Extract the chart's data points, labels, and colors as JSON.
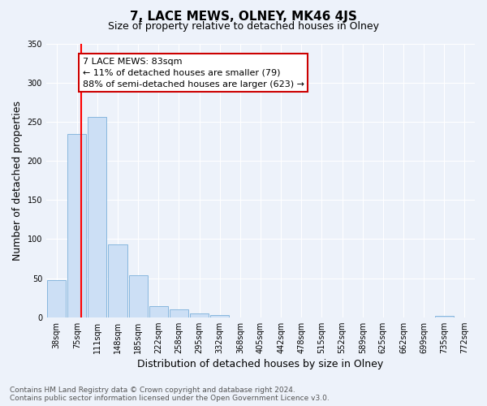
{
  "title": "7, LACE MEWS, OLNEY, MK46 4JS",
  "subtitle": "Size of property relative to detached houses in Olney",
  "xlabel": "Distribution of detached houses by size in Olney",
  "ylabel": "Number of detached properties",
  "bar_labels": [
    "38sqm",
    "75sqm",
    "111sqm",
    "148sqm",
    "185sqm",
    "222sqm",
    "258sqm",
    "295sqm",
    "332sqm",
    "368sqm",
    "405sqm",
    "442sqm",
    "478sqm",
    "515sqm",
    "552sqm",
    "589sqm",
    "625sqm",
    "662sqm",
    "699sqm",
    "735sqm",
    "772sqm"
  ],
  "bar_values": [
    48,
    235,
    256,
    93,
    54,
    14,
    10,
    5,
    3,
    0,
    0,
    0,
    0,
    0,
    0,
    0,
    0,
    0,
    0,
    2,
    0
  ],
  "bar_color": "#ccdff5",
  "bar_edge_color": "#7aafda",
  "ylim": [
    0,
    350
  ],
  "yticks": [
    0,
    50,
    100,
    150,
    200,
    250,
    300,
    350
  ],
  "red_line_x": 1.222,
  "annotation_title": "7 LACE MEWS: 83sqm",
  "annotation_line1": "← 11% of detached houses are smaller (79)",
  "annotation_line2": "88% of semi-detached houses are larger (623) →",
  "annotation_box_color": "#ffffff",
  "annotation_edge_color": "#cc0000",
  "footer_line1": "Contains HM Land Registry data © Crown copyright and database right 2024.",
  "footer_line2": "Contains public sector information licensed under the Open Government Licence v3.0.",
  "background_color": "#edf2fa",
  "grid_color": "#ffffff",
  "title_fontsize": 11,
  "subtitle_fontsize": 9,
  "axis_label_fontsize": 9,
  "tick_fontsize": 7,
  "annotation_fontsize": 8,
  "footer_fontsize": 6.5
}
